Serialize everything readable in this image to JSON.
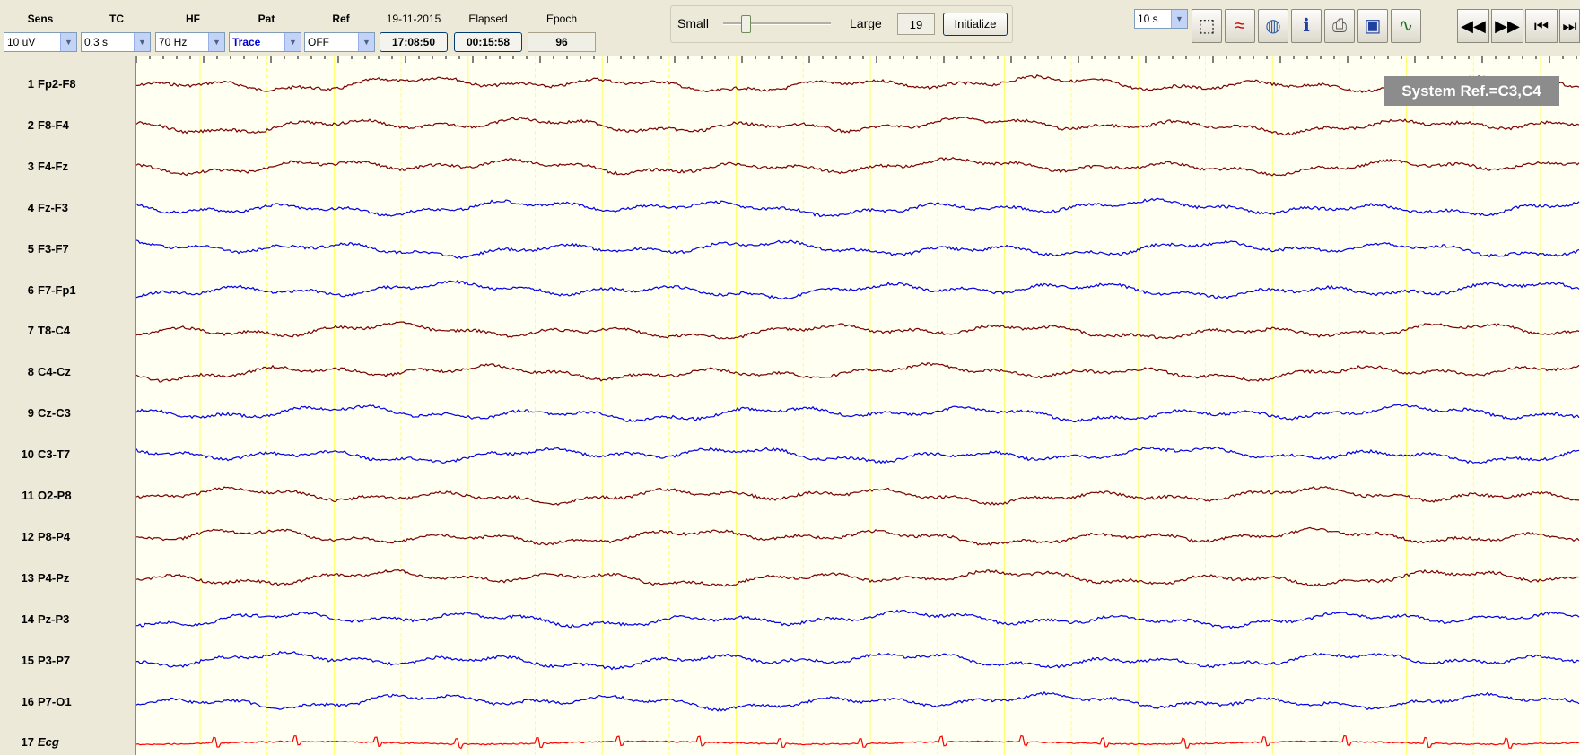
{
  "toolbar": {
    "sens": {
      "label": "Sens",
      "value": "10 uV"
    },
    "tc": {
      "label": "TC",
      "value": "0.3 s"
    },
    "hf": {
      "label": "HF",
      "value": "70 Hz"
    },
    "pat": {
      "label": "Pat",
      "value": "Trace"
    },
    "ref": {
      "label": "Ref",
      "value": "OFF"
    },
    "date": "19-11-2015",
    "time": "17:08:50",
    "elapsed_label": "Elapsed",
    "elapsed": "00:15:58",
    "epoch_label": "Epoch",
    "epoch": "96",
    "small_label": "Small",
    "large_label": "Large",
    "large_value": "19",
    "initialize_label": "Initialize",
    "timebase": "10 s"
  },
  "icons": [
    "cursor-icon",
    "montage-on-icon",
    "map-icon",
    "patient-info-icon",
    "printer-icon",
    "monitor-icon",
    "spectrum-icon"
  ],
  "nav_icons": [
    "rewind-icon",
    "fast-forward-icon",
    "skip-start-icon",
    "skip-end-icon"
  ],
  "ref_badge": "System Ref.=C3,C4",
  "colors": {
    "dark_red": "#7a0000",
    "blue": "#0000e6",
    "ecg_red": "#ff0000",
    "grid_yellow": "#ffff66"
  },
  "channels": [
    {
      "num": "1",
      "name": "Fp2-F8",
      "color": "dark_red"
    },
    {
      "num": "2",
      "name": "F8-F4",
      "color": "dark_red"
    },
    {
      "num": "3",
      "name": "F4-Fz",
      "color": "dark_red"
    },
    {
      "num": "4",
      "name": "Fz-F3",
      "color": "blue"
    },
    {
      "num": "5",
      "name": "F3-F7",
      "color": "blue"
    },
    {
      "num": "6",
      "name": "F7-Fp1",
      "color": "blue"
    },
    {
      "num": "7",
      "name": "T8-C4",
      "color": "dark_red"
    },
    {
      "num": "8",
      "name": "C4-Cz",
      "color": "dark_red"
    },
    {
      "num": "9",
      "name": "Cz-C3",
      "color": "blue"
    },
    {
      "num": "10",
      "name": "C3-T7",
      "color": "blue"
    },
    {
      "num": "11",
      "name": "O2-P8",
      "color": "dark_red"
    },
    {
      "num": "12",
      "name": "P8-P4",
      "color": "dark_red"
    },
    {
      "num": "13",
      "name": "P4-Pz",
      "color": "dark_red"
    },
    {
      "num": "14",
      "name": "Pz-P3",
      "color": "blue"
    },
    {
      "num": "15",
      "name": "P3-P7",
      "color": "blue"
    },
    {
      "num": "16",
      "name": "P7-O1",
      "color": "blue"
    },
    {
      "num": "17",
      "name": "Ecg",
      "color": "ecg_red"
    }
  ]
}
